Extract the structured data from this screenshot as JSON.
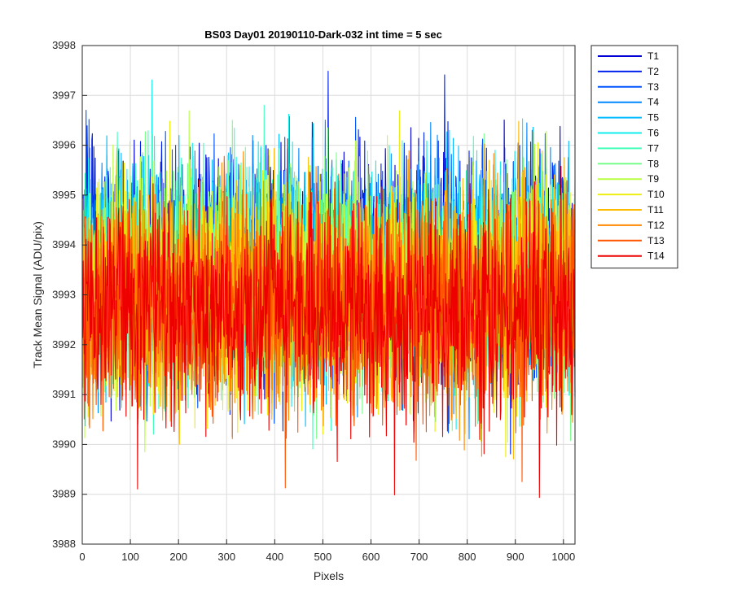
{
  "chart_data": {
    "type": "line",
    "title": "BS03 Day01 20190110-Dark-032 int time = 5 sec",
    "xlabel": "Pixels",
    "ylabel": "Track Mean Signal (ADU/pix)",
    "xlim": [
      0,
      1024
    ],
    "ylim": [
      3988,
      3998
    ],
    "xticks": [
      0,
      100,
      200,
      300,
      400,
      500,
      600,
      700,
      800,
      900,
      1000
    ],
    "yticks": [
      3988,
      3989,
      3990,
      3991,
      3992,
      3993,
      3994,
      3995,
      3996,
      3997,
      3998
    ],
    "grid": true,
    "legend_position": "outside-top-right",
    "series": [
      {
        "name": "T1",
        "color": "#0000d4",
        "mean": 3993.6,
        "sd": 1.1
      },
      {
        "name": "T2",
        "color": "#0022ee",
        "mean": 3993.6,
        "sd": 1.1
      },
      {
        "name": "T3",
        "color": "#0055ff",
        "mean": 3993.5,
        "sd": 1.1
      },
      {
        "name": "T4",
        "color": "#0088ff",
        "mean": 3993.5,
        "sd": 1.1
      },
      {
        "name": "T5",
        "color": "#00bbff",
        "mean": 3993.4,
        "sd": 1.1
      },
      {
        "name": "T6",
        "color": "#11eeee",
        "mean": 3993.4,
        "sd": 1.1
      },
      {
        "name": "T7",
        "color": "#44ffbb",
        "mean": 3993.3,
        "sd": 1.1
      },
      {
        "name": "T8",
        "color": "#77ff88",
        "mean": 3993.3,
        "sd": 1.1
      },
      {
        "name": "T9",
        "color": "#bbff44",
        "mean": 3993.2,
        "sd": 1.1
      },
      {
        "name": "T10",
        "color": "#eeee11",
        "mean": 3993.1,
        "sd": 1.1
      },
      {
        "name": "T11",
        "color": "#ffbb00",
        "mean": 3993.0,
        "sd": 1.1
      },
      {
        "name": "T12",
        "color": "#ff8800",
        "mean": 3992.9,
        "sd": 1.1
      },
      {
        "name": "T13",
        "color": "#ff5500",
        "mean": 3992.8,
        "sd": 1.1
      },
      {
        "name": "T14",
        "color": "#ee0000",
        "mean": 3992.7,
        "sd": 1.1
      }
    ]
  }
}
